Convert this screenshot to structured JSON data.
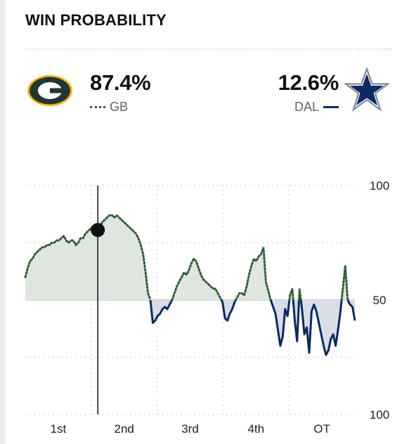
{
  "header": {
    "title": "WIN PROBABILITY"
  },
  "teams": {
    "home": {
      "pct": "87.4%",
      "abbr": "GB",
      "color": "#2f5e3a",
      "logo": "packers-g-logo"
    },
    "away": {
      "pct": "12.6%",
      "abbr": "DAL",
      "color": "#0b2a63",
      "logo": "cowboys-star-logo"
    }
  },
  "chart_data": {
    "type": "line",
    "y_ticks": [
      "100",
      "50",
      "100"
    ],
    "x_labels": [
      "1st",
      "2nd",
      "3rd",
      "4th",
      "OT"
    ],
    "ylim": [
      0,
      100
    ],
    "baseline": 50,
    "marker_x": 0.22,
    "series": [
      {
        "name": "GB",
        "values": [
          60,
          64,
          67,
          68,
          70,
          71,
          72,
          73,
          73,
          74,
          74,
          75,
          75,
          76,
          76,
          77,
          78,
          76,
          75,
          76,
          76,
          74,
          75,
          77,
          77,
          79,
          80,
          81,
          82,
          82,
          83,
          82,
          84,
          85,
          86,
          87,
          87,
          86,
          87,
          86,
          85,
          84,
          83,
          82,
          81,
          80,
          79,
          77,
          74,
          70,
          62,
          53,
          50,
          40,
          41,
          43,
          44,
          46,
          47,
          46,
          48,
          50,
          53,
          56,
          58,
          60,
          62,
          61,
          63,
          66,
          68,
          67,
          64,
          61,
          59,
          58,
          57,
          56,
          55,
          55,
          53,
          51,
          49,
          42,
          41,
          44,
          46,
          49,
          51,
          53,
          53,
          52,
          56,
          61,
          65,
          68,
          67,
          69,
          70,
          73,
          58,
          54,
          50,
          47,
          44,
          37,
          30,
          34,
          46,
          43,
          52,
          55,
          41,
          32,
          55,
          46,
          35,
          38,
          27,
          45,
          48,
          45,
          40,
          35,
          30,
          26,
          28,
          33,
          35,
          30,
          37,
          45,
          55,
          65,
          50,
          48,
          47,
          41
        ]
      }
    ]
  }
}
